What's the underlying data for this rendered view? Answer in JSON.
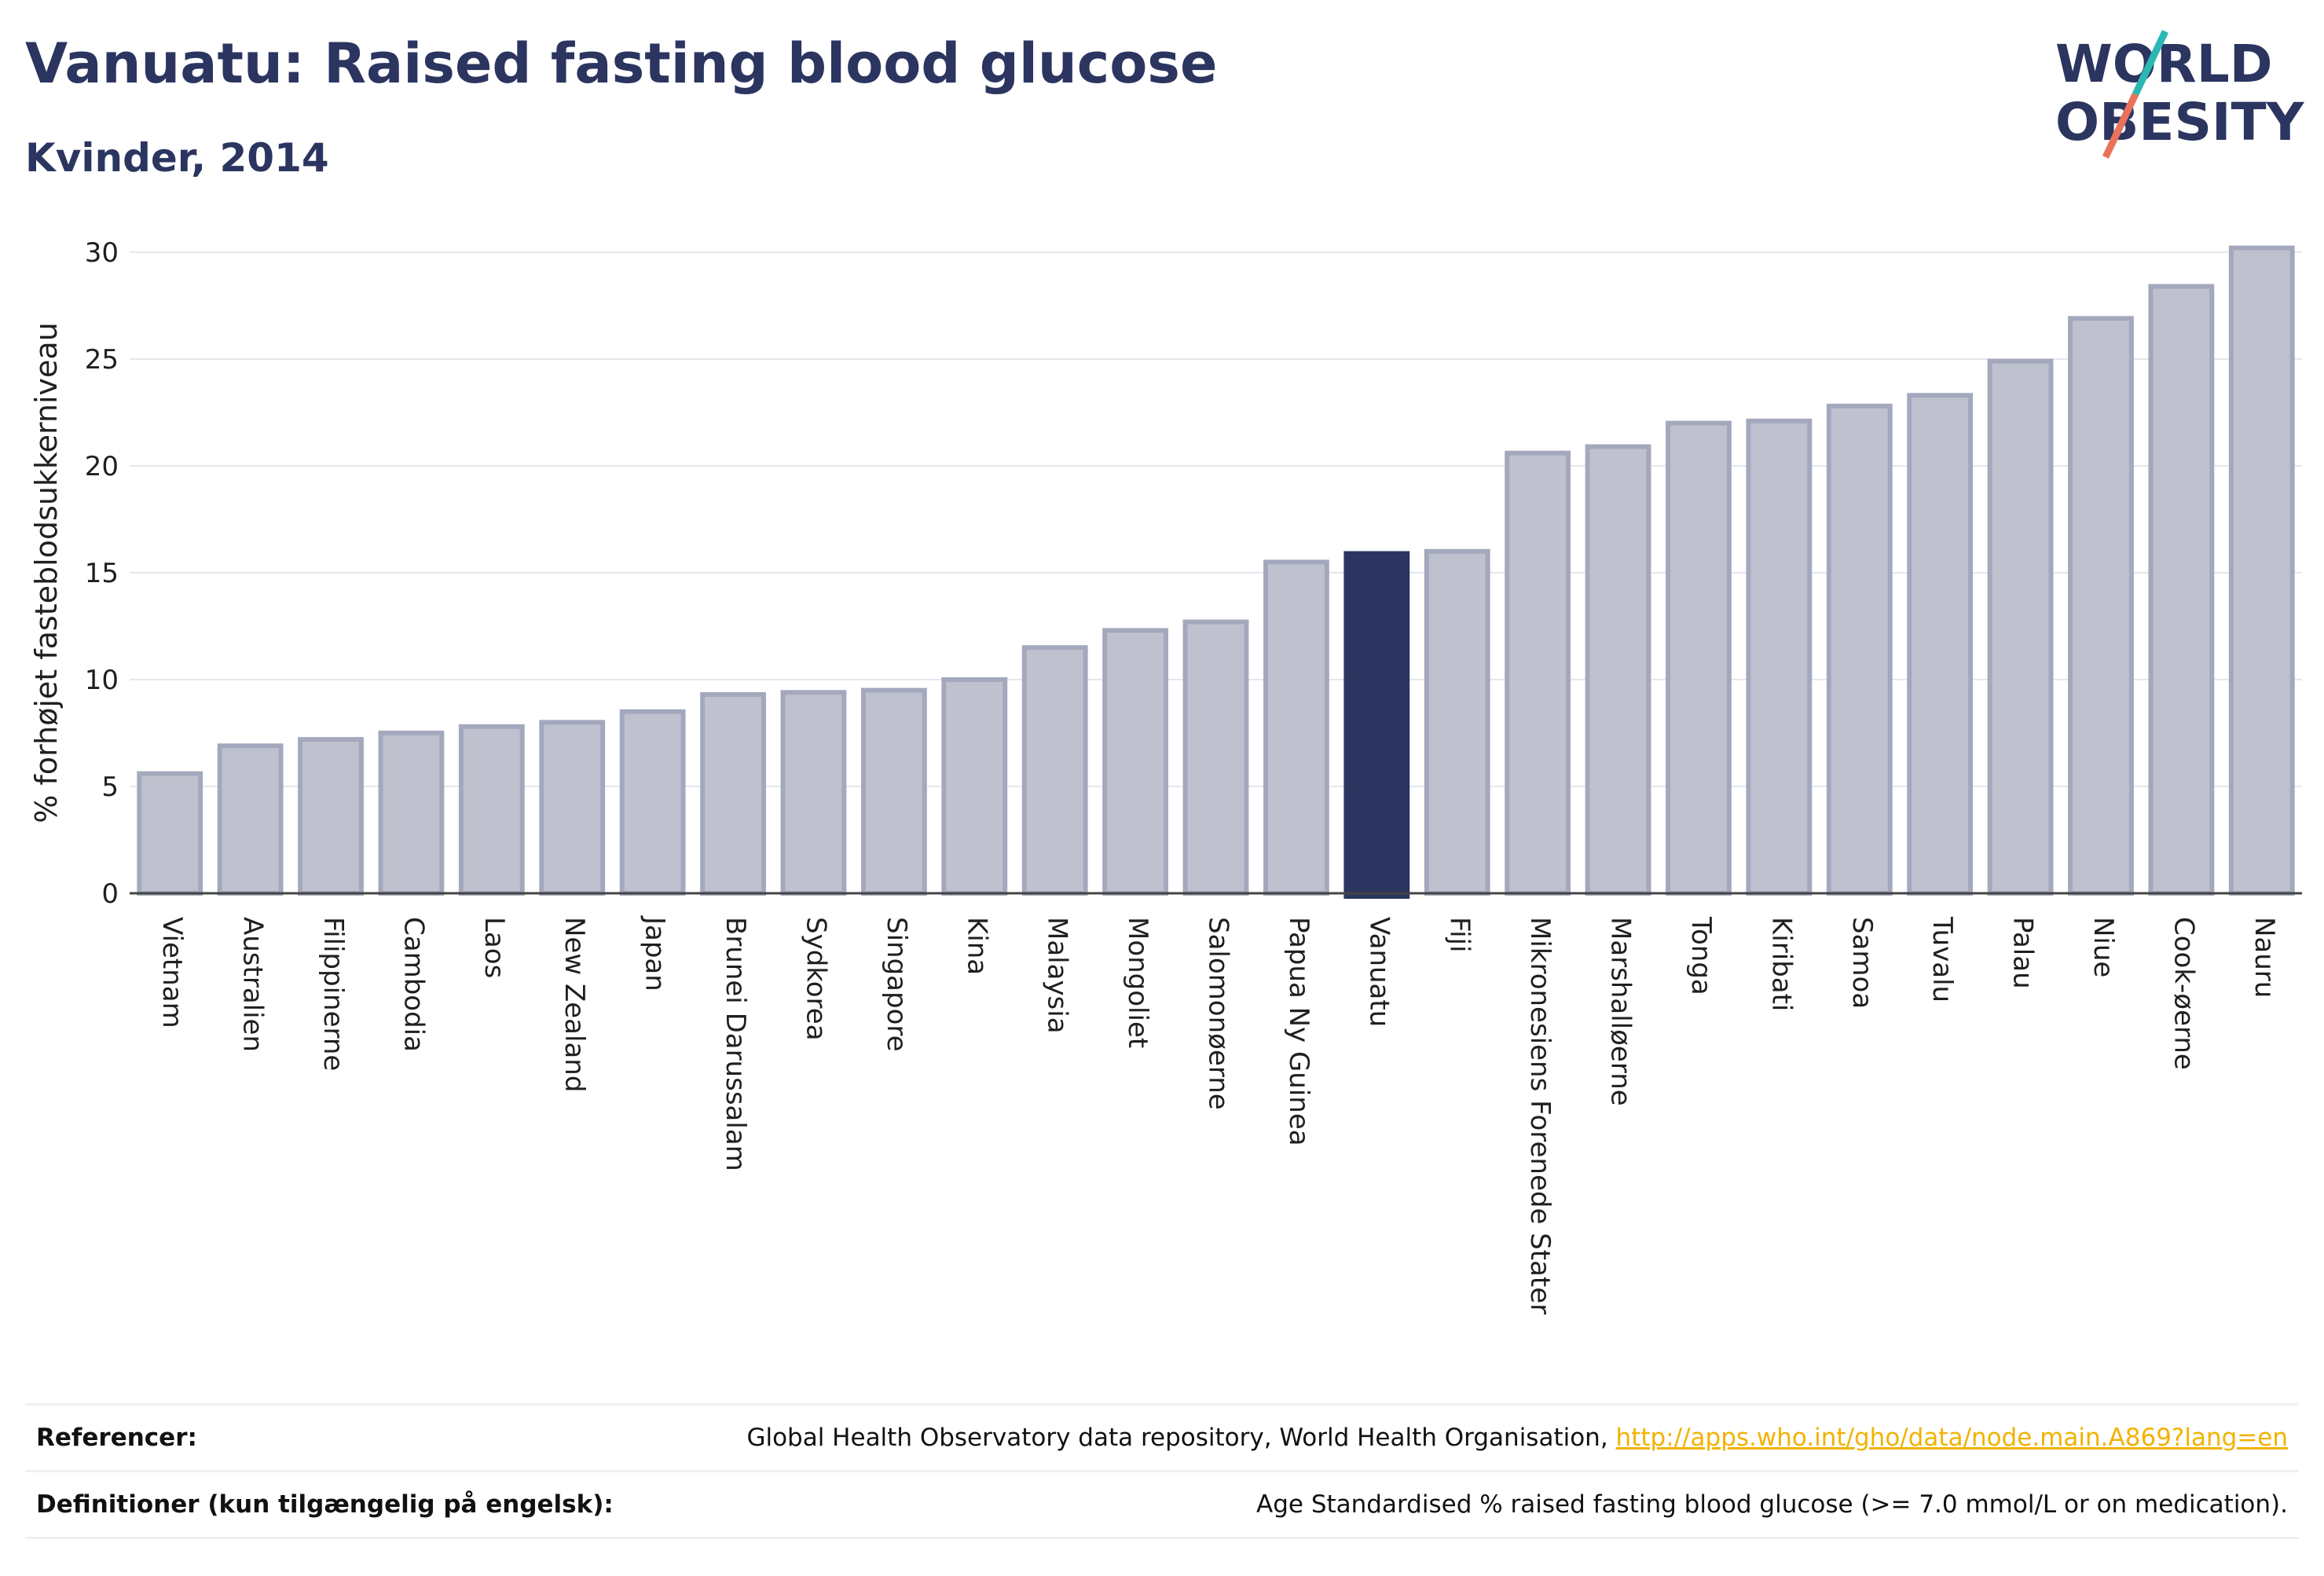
{
  "header": {
    "title": "Vanuatu: Raised fasting blood glucose",
    "subtitle": "Kvinder, 2014"
  },
  "logo": {
    "line1": "WORLD",
    "line2": "OBESITY",
    "colors": {
      "text": "#2b3560",
      "slash_top": "#2bb7b3",
      "slash_bottom": "#e8735a"
    }
  },
  "colors": {
    "bar_fill": "#bfc2ce",
    "bar_stroke": "#a3a8bd",
    "highlight_fill": "#2b3560",
    "grid": "#e6e7ee",
    "axis": "#444444"
  },
  "chart_data": {
    "type": "bar",
    "title": "Vanuatu: Raised fasting blood glucose",
    "subtitle": "Kvinder, 2014",
    "xlabel": "",
    "ylabel": "% forhøjet fasteblodsukkerniveau",
    "ylim": [
      0,
      31
    ],
    "yticks": [
      0,
      5,
      10,
      15,
      20,
      25,
      30
    ],
    "grid": true,
    "highlight": "Vanuatu",
    "categories": [
      "Vietnam",
      "Australien",
      "Filippinerne",
      "Cambodia",
      "Laos",
      "New Zealand",
      "Japan",
      "Brunei Darussalam",
      "Sydkorea",
      "Singapore",
      "Kina",
      "Malaysia",
      "Mongoliet",
      "Salomonøerne",
      "Papua Ny Guinea",
      "Vanuatu",
      "Fiji",
      "Mikronesiens Forenede Stater",
      "Marshalløerne",
      "Tonga",
      "Kiribati",
      "Samoa",
      "Tuvalu",
      "Palau",
      "Niue",
      "Cook-øerne",
      "Nauru"
    ],
    "values": [
      5.6,
      6.9,
      7.2,
      7.5,
      7.8,
      8.0,
      8.5,
      9.3,
      9.4,
      9.5,
      10.0,
      11.5,
      12.3,
      12.7,
      15.5,
      15.9,
      16.0,
      20.6,
      20.9,
      22.0,
      22.1,
      22.8,
      23.3,
      24.9,
      26.9,
      28.4,
      30.2
    ]
  },
  "footer": {
    "references_label": "Referencer:",
    "references_text": "Global Health Observatory data repository, World Health Organisation, ",
    "references_link": "http://apps.who.int/gho/data/node.main.A869?lang=en",
    "definitions_label": "Definitioner (kun tilgængelig på engelsk):",
    "definitions_text": "Age Standardised % raised fasting blood glucose (>= 7.0 mmol/L or on medication)."
  }
}
